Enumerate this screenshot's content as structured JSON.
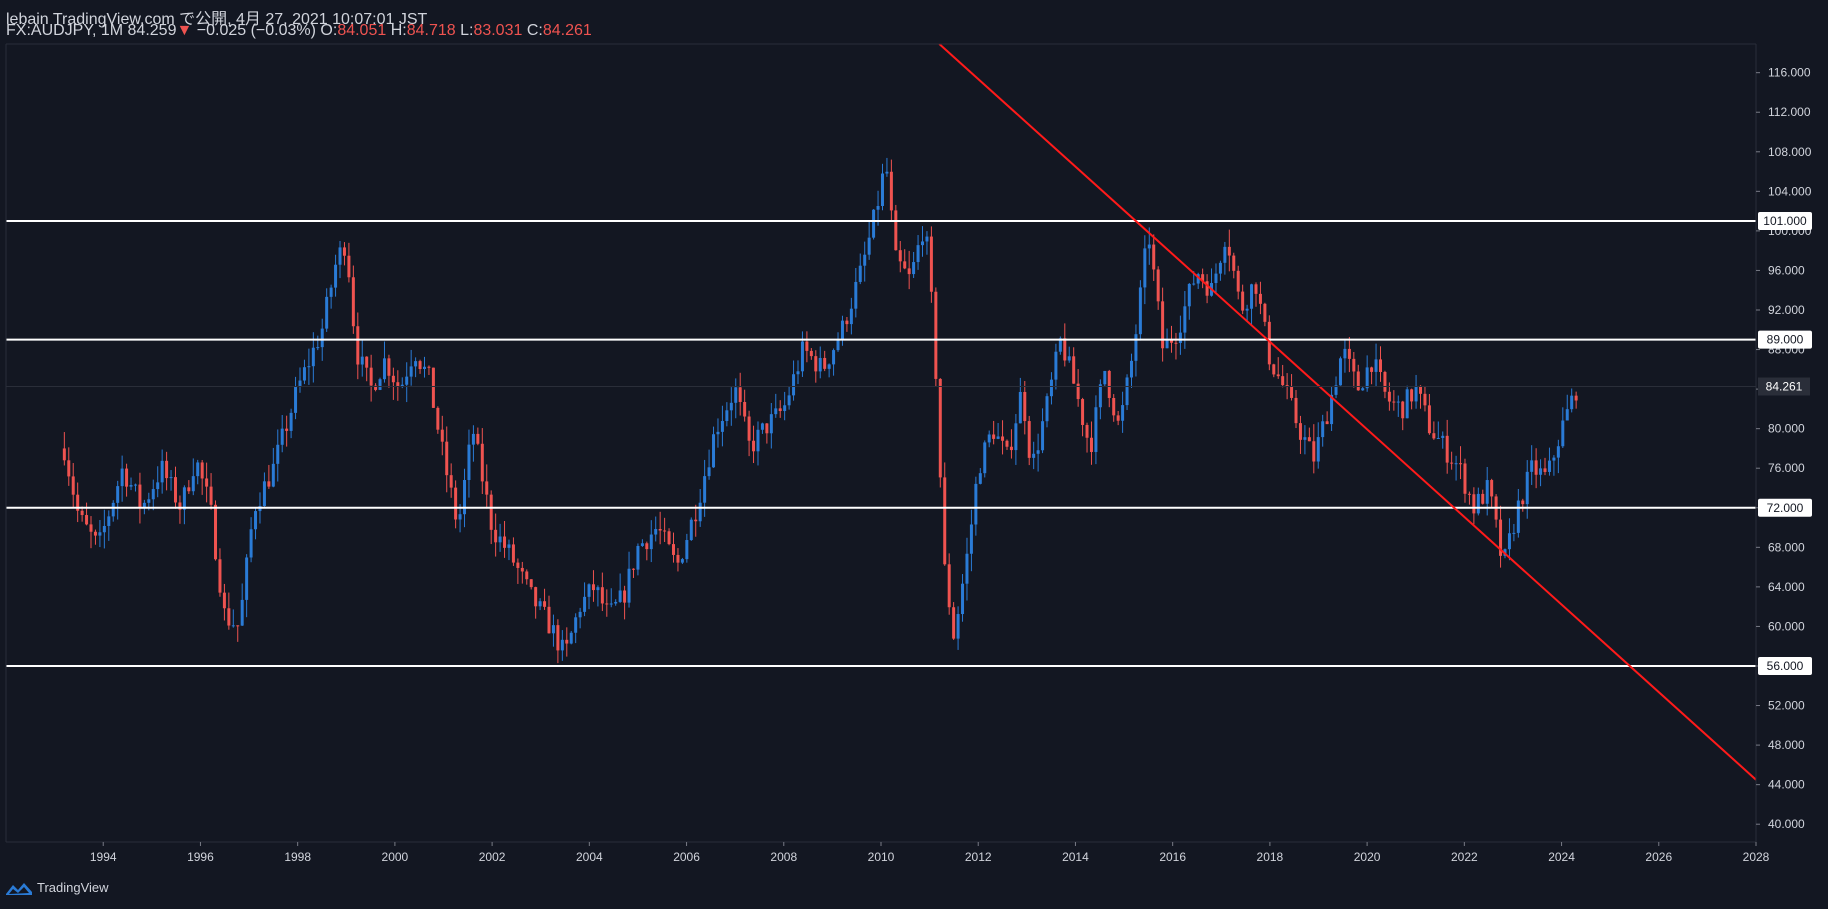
{
  "header": {
    "publish_line": "lebain TradingView.com で公開, 4月 27, 2021 10:07:01 JST",
    "symbol": "FX:AUDJPY, 1M",
    "last": "84.259",
    "change": "−0.025 (−0.03%)",
    "open_label": "O:",
    "open": "84.051",
    "high_label": "H:",
    "high": "84.718",
    "low_label": "L:",
    "low": "83.031",
    "close_label": "C:",
    "close": "84.261"
  },
  "footer": {
    "brand": "TradingView",
    "logo_icon": "tradingview-logo-icon"
  },
  "colors": {
    "background": "#131722",
    "up": "#2a7bd6",
    "down": "#ef5350",
    "trendline": "#ff1a1a",
    "level": "#ffffff",
    "text": "#d1d4dc"
  },
  "chart_data": {
    "type": "candlestick",
    "symbol": "FX:AUDJPY",
    "interval": "1M",
    "x_ticks": [
      "1994",
      "1996",
      "1998",
      "2000",
      "2002",
      "2004",
      "2006",
      "2008",
      "2010",
      "2012",
      "2014",
      "2016",
      "2018",
      "2020",
      "2022",
      "2024",
      "2026",
      "2028"
    ],
    "y_ticks": [
      "40.000",
      "44.000",
      "48.000",
      "52.000",
      "56.000",
      "60.000",
      "64.000",
      "68.000",
      "72.000",
      "76.000",
      "80.000",
      "84.000",
      "88.000",
      "92.000",
      "96.000",
      "100.000",
      "104.000",
      "108.000",
      "112.000",
      "116.000"
    ],
    "ylim": [
      38.2,
      118.9
    ],
    "xlim": [
      1992.0,
      2028.0
    ],
    "last_price_label": "84.261",
    "last_price": 84.261,
    "horizontal_levels": [
      {
        "label": "101.000",
        "value": 101.0
      },
      {
        "label": "89.000",
        "value": 89.0
      },
      {
        "label": "72.000",
        "value": 72.0
      },
      {
        "label": "56.000",
        "value": 56.0
      }
    ],
    "trendline": {
      "from": [
        2011.2,
        118.9
      ],
      "to": [
        2028.0,
        44.5
      ]
    },
    "price_path": [
      [
        1993.2,
        78.0
      ],
      [
        1993.5,
        71.0
      ],
      [
        1993.9,
        68.0
      ],
      [
        1994.4,
        76.0
      ],
      [
        1994.8,
        72.0
      ],
      [
        1995.2,
        76.0
      ],
      [
        1995.6,
        72.0
      ],
      [
        1995.9,
        77.0
      ],
      [
        1996.2,
        72.0
      ],
      [
        1996.5,
        61.0
      ],
      [
        1996.8,
        60.0
      ],
      [
        1997.1,
        72.0
      ],
      [
        1997.5,
        76.0
      ],
      [
        1998.0,
        84.0
      ],
      [
        1998.5,
        90.0
      ],
      [
        1998.8,
        97.0
      ],
      [
        1999.0,
        99.0
      ],
      [
        1999.2,
        88.0
      ],
      [
        1999.5,
        84.0
      ],
      [
        1999.8,
        87.0
      ],
      [
        2000.1,
        84.0
      ],
      [
        2000.4,
        88.0
      ],
      [
        2000.7,
        85.0
      ],
      [
        2001.0,
        77.0
      ],
      [
        2001.3,
        70.0
      ],
      [
        2001.6,
        80.0
      ],
      [
        2002.0,
        70.0
      ],
      [
        2002.4,
        67.0
      ],
      [
        2002.8,
        63.0
      ],
      [
        2003.2,
        60.0
      ],
      [
        2003.5,
        57.0
      ],
      [
        2003.8,
        62.0
      ],
      [
        2004.1,
        64.0
      ],
      [
        2004.4,
        61.0
      ],
      [
        2004.7,
        63.0
      ],
      [
        2005.0,
        68.0
      ],
      [
        2005.4,
        70.0
      ],
      [
        2005.8,
        66.0
      ],
      [
        2006.2,
        72.0
      ],
      [
        2006.6,
        80.0
      ],
      [
        2007.0,
        84.0
      ],
      [
        2007.3,
        78.0
      ],
      [
        2007.6,
        80.0
      ],
      [
        2008.0,
        82.0
      ],
      [
        2008.4,
        88.0
      ],
      [
        2008.8,
        86.0
      ],
      [
        2009.2,
        90.0
      ],
      [
        2009.6,
        96.0
      ],
      [
        2009.9,
        102.0
      ],
      [
        2010.1,
        107.0
      ],
      [
        2010.3,
        97.0
      ],
      [
        2010.6,
        95.0
      ],
      [
        2010.9,
        101.0
      ],
      [
        2011.1,
        89.0
      ],
      [
        2011.3,
        66.0
      ],
      [
        2011.5,
        59.0
      ],
      [
        2011.8,
        68.0
      ],
      [
        2012.0,
        76.0
      ],
      [
        2012.3,
        80.0
      ],
      [
        2012.6,
        77.0
      ],
      [
        2012.9,
        84.0
      ],
      [
        2013.1,
        76.0
      ],
      [
        2013.4,
        82.0
      ],
      [
        2013.7,
        89.0
      ],
      [
        2014.0,
        84.0
      ],
      [
        2014.3,
        78.0
      ],
      [
        2014.6,
        86.0
      ],
      [
        2014.9,
        80.0
      ],
      [
        2015.2,
        88.0
      ],
      [
        2015.5,
        100.0
      ],
      [
        2015.8,
        88.0
      ],
      [
        2016.1,
        90.0
      ],
      [
        2016.5,
        96.0
      ],
      [
        2016.8,
        94.0
      ],
      [
        2017.1,
        100.0
      ],
      [
        2017.4,
        92.0
      ],
      [
        2017.7,
        95.0
      ],
      [
        2018.0,
        87.0
      ],
      [
        2018.3,
        84.0
      ],
      [
        2018.6,
        80.0
      ],
      [
        2018.9,
        77.0
      ],
      [
        2019.2,
        82.0
      ],
      [
        2019.5,
        88.0
      ],
      [
        2019.8,
        84.0
      ],
      [
        2020.1,
        87.0
      ],
      [
        2020.4,
        83.0
      ],
      [
        2020.7,
        82.0
      ],
      [
        2021.0,
        84.0
      ],
      [
        2021.3,
        80.0
      ],
      [
        2021.6,
        78.0
      ],
      [
        2021.9,
        76.0
      ],
      [
        2022.2,
        72.0
      ],
      [
        2022.5,
        74.0
      ],
      [
        2022.8,
        66.0
      ],
      [
        2023.1,
        72.0
      ],
      [
        2023.4,
        76.0
      ],
      [
        2023.7,
        75.0
      ],
      [
        2024.0,
        80.0
      ],
      [
        2024.3,
        84.0
      ]
    ]
  }
}
